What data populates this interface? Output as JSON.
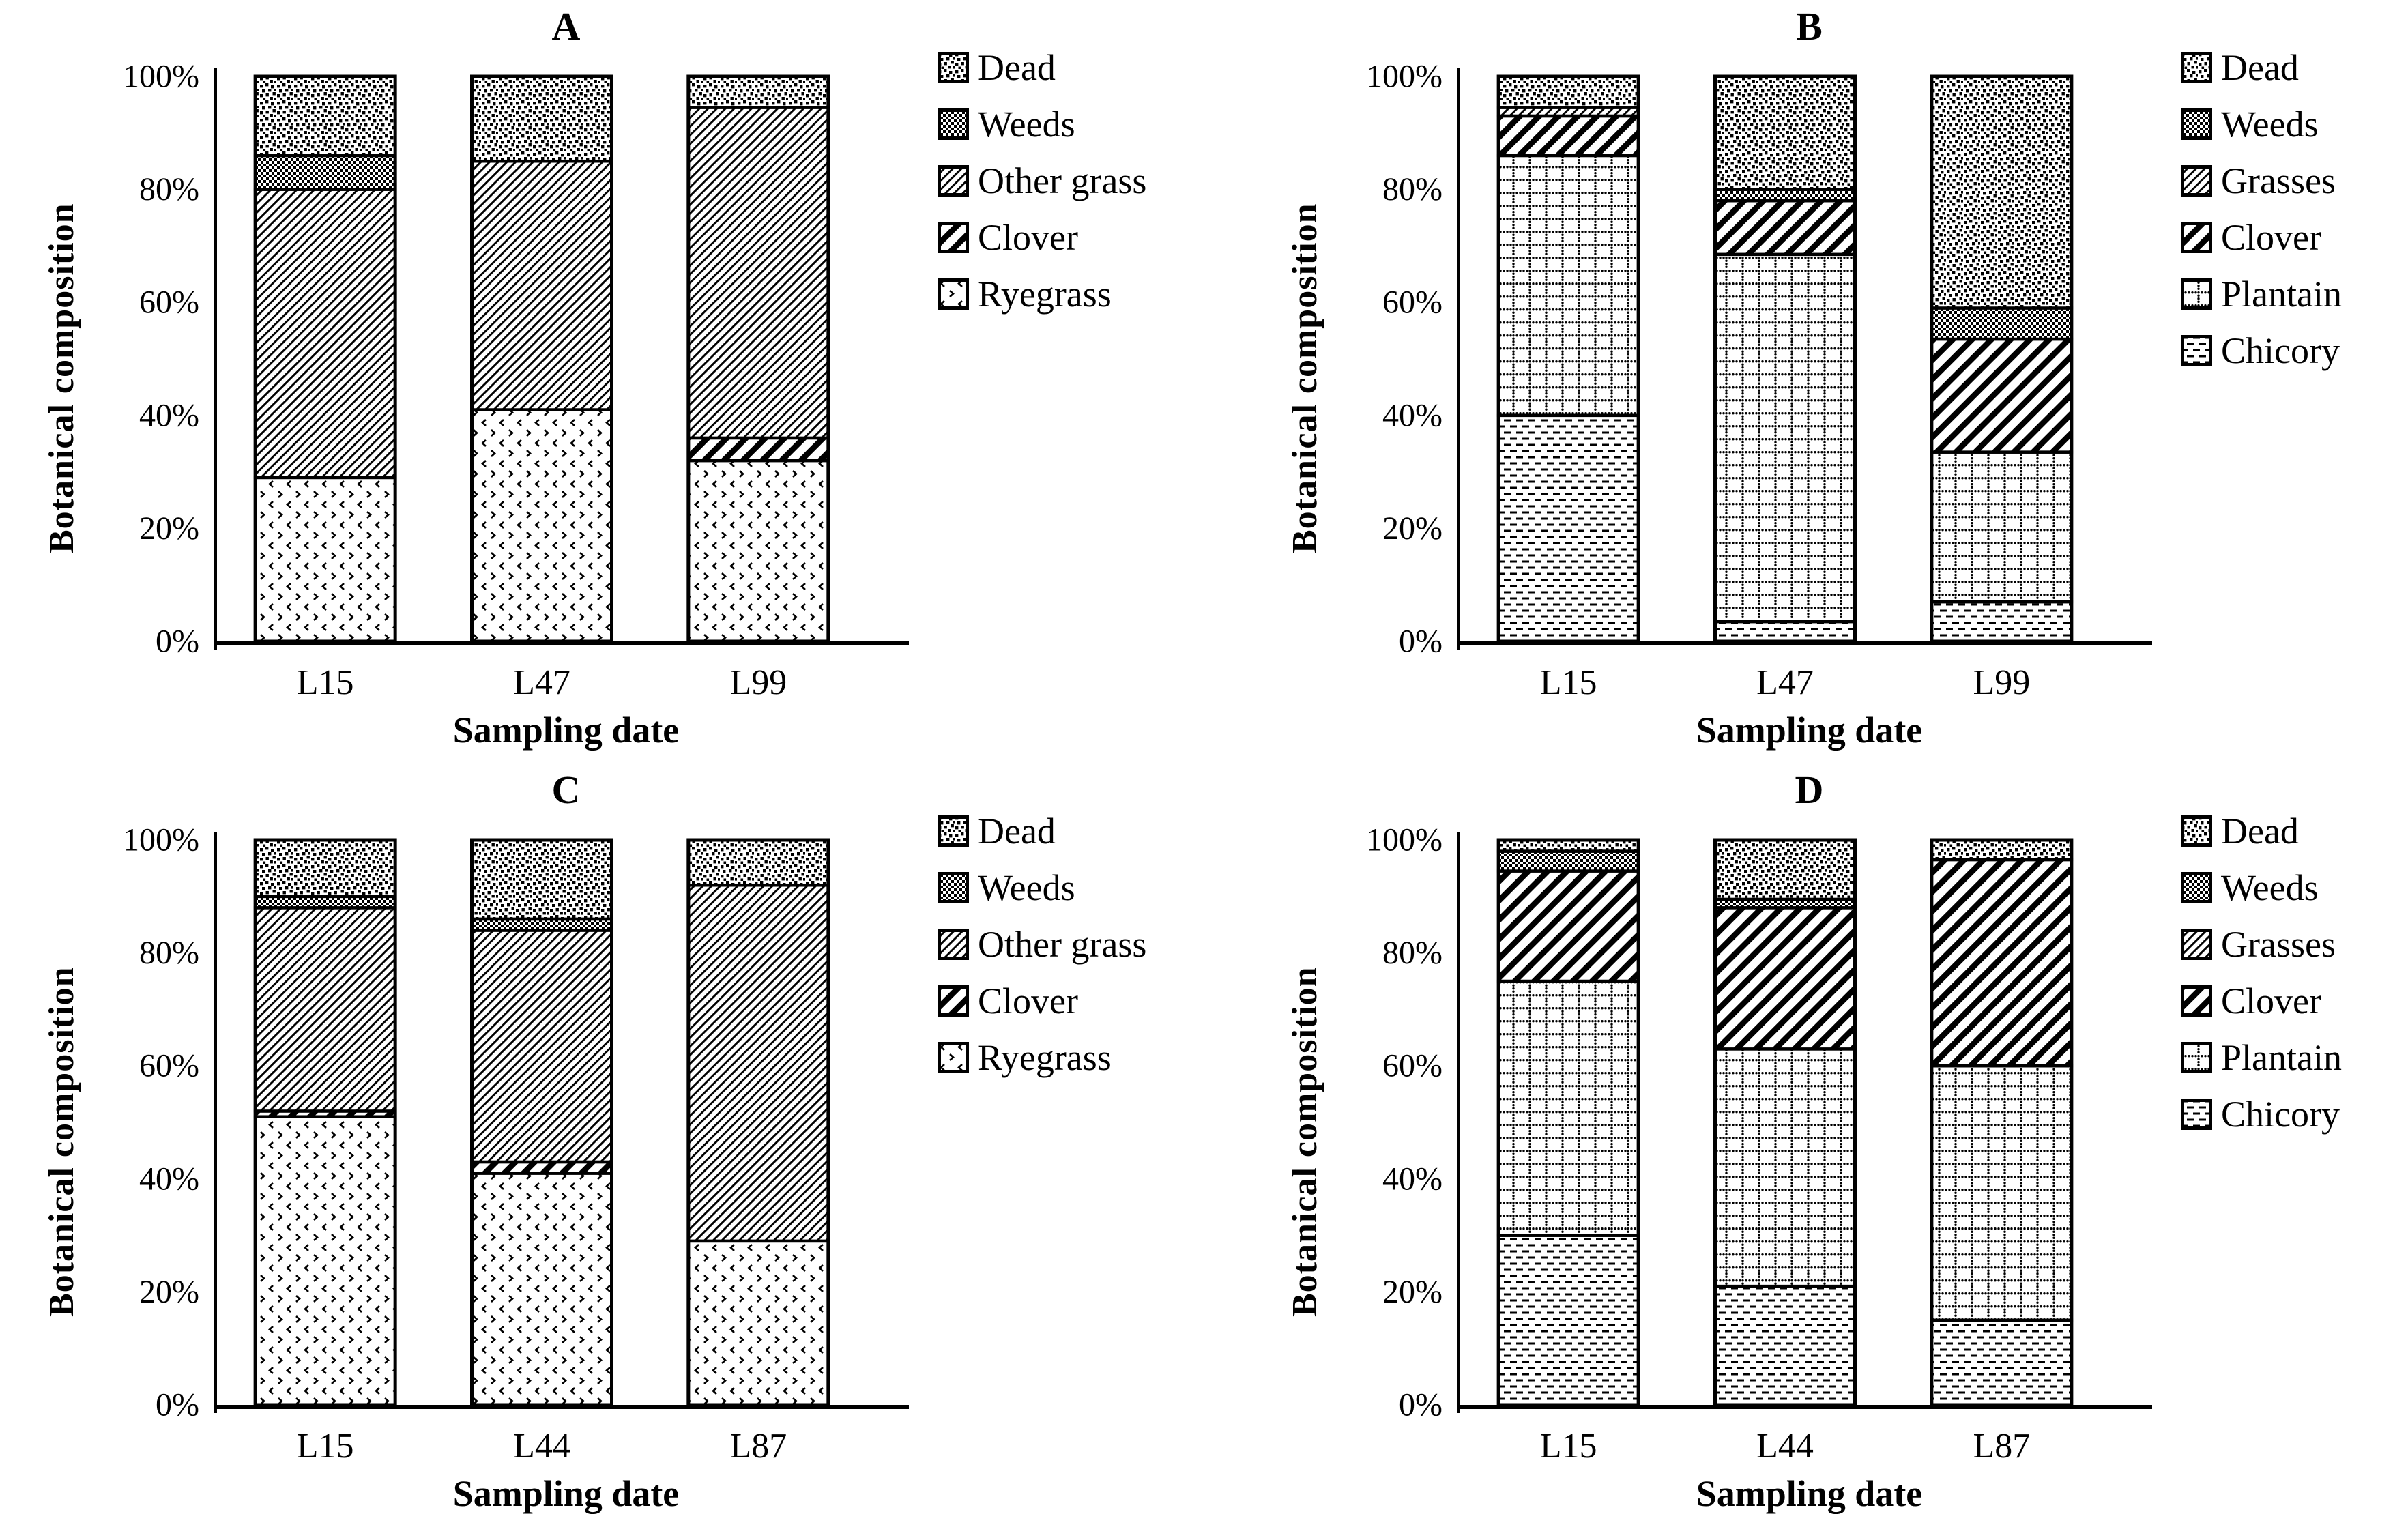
{
  "figure": {
    "ylabel": "Botanical composition",
    "xlabel": "Sampling date"
  },
  "chart_data": [
    {
      "type": "bar",
      "stacked": true,
      "title": "A",
      "xlabel": "Sampling date",
      "ylabel": "Botanical composition",
      "ylim": [
        0,
        100
      ],
      "grid": false,
      "legend_position": "right",
      "yticks": [
        "0%",
        "20%",
        "40%",
        "60%",
        "80%",
        "100%"
      ],
      "categories": [
        "L15",
        "L47",
        "L99"
      ],
      "legend": [
        {
          "label": "Dead",
          "pattern": "speckle"
        },
        {
          "label": "Weeds",
          "pattern": "checker"
        },
        {
          "label": "Other grass",
          "pattern": "thin-hatch"
        },
        {
          "label": "Clover",
          "pattern": "bold-stripe"
        },
        {
          "label": "Ryegrass",
          "pattern": "chevron-dots"
        }
      ],
      "series": [
        {
          "name": "Ryegrass",
          "pattern": "chevron-dots",
          "values": [
            29,
            41,
            32
          ]
        },
        {
          "name": "Clover",
          "pattern": "bold-stripe",
          "values": [
            0,
            0,
            4
          ]
        },
        {
          "name": "Other grass",
          "pattern": "thin-hatch",
          "values": [
            51,
            44,
            58.5
          ]
        },
        {
          "name": "Weeds",
          "pattern": "checker",
          "values": [
            6,
            0,
            0
          ]
        },
        {
          "name": "Dead",
          "pattern": "speckle",
          "values": [
            14,
            15,
            5.5
          ]
        }
      ]
    },
    {
      "type": "bar",
      "stacked": true,
      "title": "B",
      "xlabel": "Sampling date",
      "ylabel": "Botanical composition",
      "ylim": [
        0,
        100
      ],
      "grid": false,
      "legend_position": "right",
      "yticks": [
        "0%",
        "20%",
        "40%",
        "60%",
        "80%",
        "100%"
      ],
      "categories": [
        "L15",
        "L47",
        "L99"
      ],
      "legend": [
        {
          "label": "Dead",
          "pattern": "speckle"
        },
        {
          "label": "Weeds",
          "pattern": "checker"
        },
        {
          "label": "Grasses",
          "pattern": "thin-hatch"
        },
        {
          "label": "Clover",
          "pattern": "bold-stripe"
        },
        {
          "label": "Plantain",
          "pattern": "dot-grid"
        },
        {
          "label": "Chicory",
          "pattern": "dash-rows"
        }
      ],
      "series": [
        {
          "name": "Chicory",
          "pattern": "dash-rows",
          "values": [
            40,
            3.5,
            7
          ]
        },
        {
          "name": "Plantain",
          "pattern": "dot-grid",
          "values": [
            46,
            65,
            26.5
          ]
        },
        {
          "name": "Clover",
          "pattern": "bold-stripe",
          "values": [
            7,
            9.5,
            20
          ]
        },
        {
          "name": "Grasses",
          "pattern": "thin-hatch",
          "values": [
            1.5,
            0,
            0
          ]
        },
        {
          "name": "Weeds",
          "pattern": "checker",
          "values": [
            0,
            2,
            5.5
          ]
        },
        {
          "name": "Dead",
          "pattern": "speckle",
          "values": [
            5.5,
            20,
            41
          ]
        }
      ]
    },
    {
      "type": "bar",
      "stacked": true,
      "title": "C",
      "xlabel": "Sampling date",
      "ylabel": "Botanical composition",
      "ylim": [
        0,
        100
      ],
      "grid": false,
      "legend_position": "right",
      "yticks": [
        "0%",
        "20%",
        "40%",
        "60%",
        "80%",
        "100%"
      ],
      "categories": [
        "L15",
        "L44",
        "L87"
      ],
      "legend": [
        {
          "label": "Dead",
          "pattern": "speckle"
        },
        {
          "label": "Weeds",
          "pattern": "checker"
        },
        {
          "label": "Other grass",
          "pattern": "thin-hatch"
        },
        {
          "label": "Clover",
          "pattern": "bold-stripe"
        },
        {
          "label": "Ryegrass",
          "pattern": "chevron-dots"
        }
      ],
      "series": [
        {
          "name": "Ryegrass",
          "pattern": "chevron-dots",
          "values": [
            51,
            41,
            29
          ]
        },
        {
          "name": "Clover",
          "pattern": "bold-stripe",
          "values": [
            1,
            2,
            0
          ]
        },
        {
          "name": "Other grass",
          "pattern": "thin-hatch",
          "values": [
            36,
            41,
            63
          ]
        },
        {
          "name": "Weeds",
          "pattern": "checker",
          "values": [
            2,
            2,
            0
          ]
        },
        {
          "name": "Dead",
          "pattern": "speckle",
          "values": [
            10,
            14,
            8
          ]
        }
      ]
    },
    {
      "type": "bar",
      "stacked": true,
      "title": "D",
      "xlabel": "Sampling date",
      "ylabel": "Botanical composition",
      "ylim": [
        0,
        100
      ],
      "grid": false,
      "legend_position": "right",
      "yticks": [
        "0%",
        "20%",
        "40%",
        "60%",
        "80%",
        "100%"
      ],
      "categories": [
        "L15",
        "L44",
        "L87"
      ],
      "legend": [
        {
          "label": "Dead",
          "pattern": "speckle"
        },
        {
          "label": "Weeds",
          "pattern": "checker"
        },
        {
          "label": "Grasses",
          "pattern": "thin-hatch"
        },
        {
          "label": "Clover",
          "pattern": "bold-stripe"
        },
        {
          "label": "Plantain",
          "pattern": "dot-grid"
        },
        {
          "label": "Chicory",
          "pattern": "dash-rows"
        }
      ],
      "series": [
        {
          "name": "Chicory",
          "pattern": "dash-rows",
          "values": [
            30,
            21,
            15
          ]
        },
        {
          "name": "Plantain",
          "pattern": "dot-grid",
          "values": [
            45,
            42,
            45
          ]
        },
        {
          "name": "Clover",
          "pattern": "bold-stripe",
          "values": [
            19.5,
            25,
            36.5
          ]
        },
        {
          "name": "Weeds",
          "pattern": "checker",
          "values": [
            3.5,
            1.5,
            0
          ]
        },
        {
          "name": "Dead",
          "pattern": "speckle",
          "values": [
            2,
            10.5,
            3.5
          ]
        }
      ]
    }
  ],
  "colors": {
    "ink": "#000000",
    "background": "#ffffff"
  }
}
